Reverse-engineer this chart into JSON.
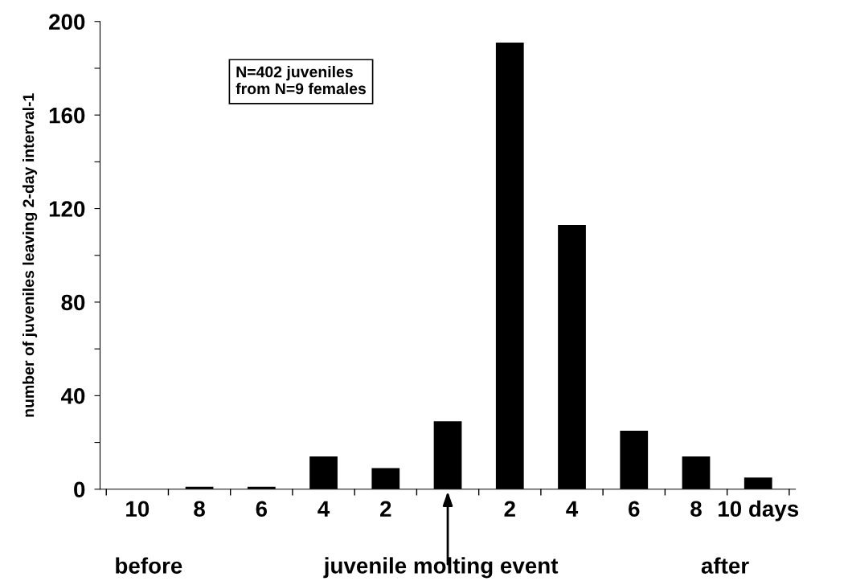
{
  "chart_data": {
    "type": "bar",
    "ylabel": "number of juveniles leaving 2-day interval-1",
    "categories": [
      "10",
      "8",
      "6",
      "4",
      "2",
      null,
      "2",
      "4",
      "6",
      "8",
      "10 days"
    ],
    "values": [
      0,
      1,
      1,
      14,
      9,
      29,
      191,
      113,
      25,
      14,
      5
    ],
    "color": "#000000",
    "ylim": [
      0,
      200
    ],
    "yticks": [
      0,
      {
        "value": 20,
        "label": null
      },
      40,
      {
        "value": 60,
        "label": null
      },
      80,
      {
        "value": 100,
        "label": null
      },
      120,
      {
        "value": 140,
        "label": null
      },
      160,
      {
        "value": 180,
        "label": null
      },
      200
    ],
    "grid": false,
    "annotations": [
      "N=402 juveniles\nfrom N=9 females",
      "before",
      "juvenile molting event",
      "after"
    ]
  }
}
